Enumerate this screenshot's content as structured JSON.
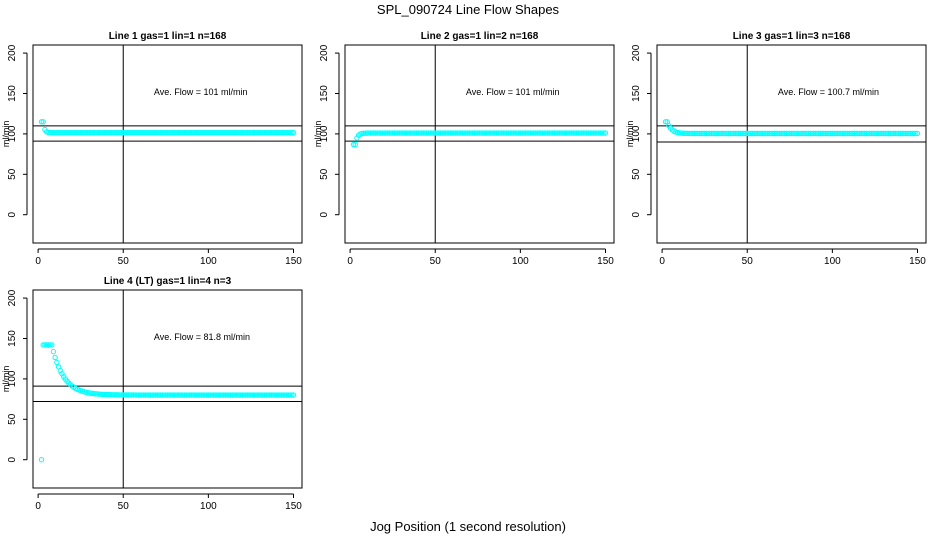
{
  "figure": {
    "title": "SPL_090724  Line Flow Shapes",
    "xlabel": "Jog Position (1 second resolution)"
  },
  "colors": {
    "points": "#00ffff",
    "lines": "#000000"
  },
  "chart_data": [
    {
      "type": "scatter",
      "title": "Line 1 gas=1 lin=1 n=168",
      "ylabel": "ml/min",
      "xlim": [
        -3,
        155
      ],
      "ylim": [
        -35,
        210
      ],
      "xticks": [
        0,
        50,
        100,
        150
      ],
      "yticks": [
        0,
        50,
        100,
        150,
        200
      ],
      "hlines": [
        110,
        91
      ],
      "vline": 50,
      "annotation": "Ave. Flow =  101  ml/min",
      "series": [
        {
          "x_start": 2,
          "x_end": 150,
          "start": 115,
          "plateau": 101.5,
          "tau": 0.8,
          "first": 115
        }
      ]
    },
    {
      "type": "scatter",
      "title": "Line 2 gas=1 lin=2 n=168",
      "ylabel": "ml/min",
      "xlim": [
        -3,
        155
      ],
      "ylim": [
        -35,
        210
      ],
      "xticks": [
        0,
        50,
        100,
        150
      ],
      "yticks": [
        0,
        50,
        100,
        150,
        200
      ],
      "hlines": [
        110,
        91
      ],
      "vline": 50,
      "annotation": "Ave. Flow =  101  ml/min",
      "series": [
        {
          "x_start": 2,
          "x_end": 150,
          "start": 87,
          "plateau": 101,
          "tau": 1.2,
          "first": 87
        }
      ]
    },
    {
      "type": "scatter",
      "title": "Line 3 gas=1 lin=3 n=168",
      "ylabel": "ml/min",
      "xlim": [
        -3,
        155
      ],
      "ylim": [
        -35,
        210
      ],
      "xticks": [
        0,
        50,
        100,
        150
      ],
      "yticks": [
        0,
        50,
        100,
        150,
        200
      ],
      "hlines": [
        110,
        90
      ],
      "vline": 50,
      "annotation": "Ave. Flow =  100.7  ml/min",
      "series": [
        {
          "x_start": 2,
          "x_end": 150,
          "start": 115,
          "plateau": 100.5,
          "tau": 2.5,
          "first": 115
        }
      ]
    },
    {
      "type": "scatter",
      "title": "Line 4 (LT) gas=1 lin=4 n=3",
      "ylabel": "ml/min",
      "xlim": [
        -3,
        155
      ],
      "ylim": [
        -35,
        210
      ],
      "xticks": [
        0,
        50,
        100,
        150
      ],
      "yticks": [
        0,
        50,
        100,
        150,
        200
      ],
      "hlines": [
        91,
        72
      ],
      "vline": 50,
      "annotation": "Ave. Flow =  81.8  ml/min",
      "series": [
        {
          "x_start": 2,
          "x_end": 150,
          "start": 142,
          "plateau": 80,
          "tau": 7,
          "first": 0,
          "hold": 5
        }
      ]
    }
  ]
}
